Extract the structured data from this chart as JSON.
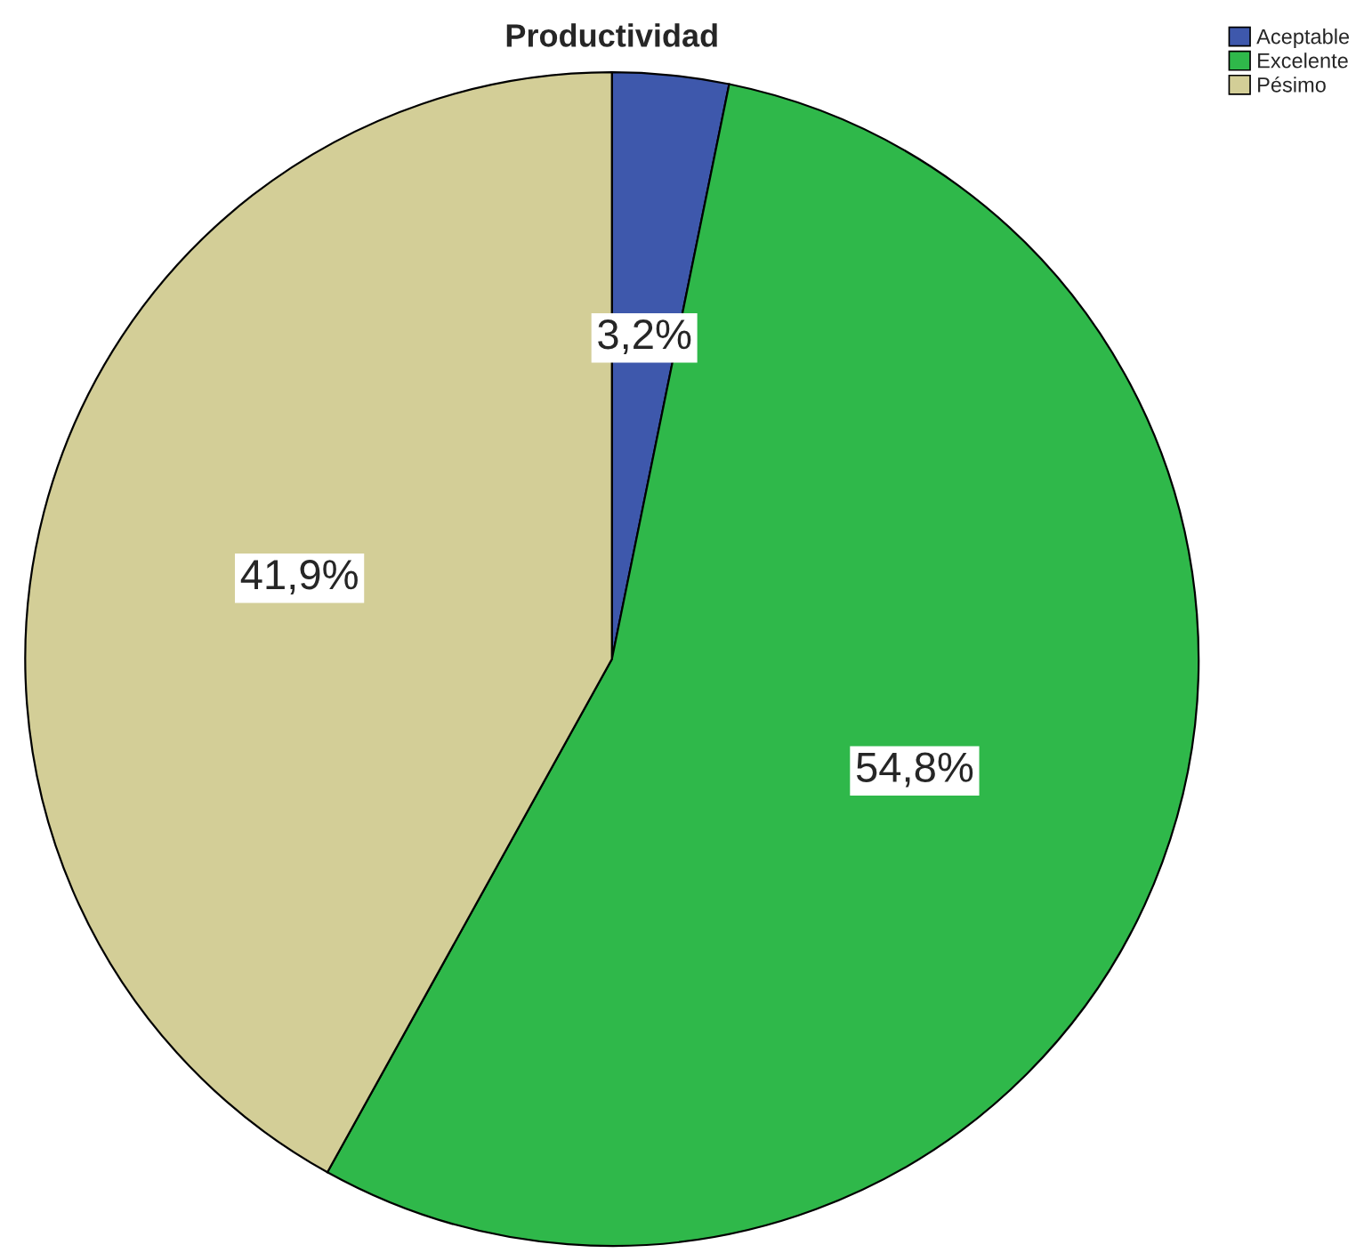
{
  "chart_data": {
    "type": "pie",
    "title": "Productividad",
    "categories": [
      "Aceptable",
      "Excelente",
      "Pésimo"
    ],
    "values": [
      3.2,
      54.8,
      41.9
    ],
    "value_labels": [
      "3,2%",
      "54,8%",
      "41,9%"
    ],
    "colors": [
      "#3e58ac",
      "#2fb84a",
      "#d3ce97"
    ],
    "legend": "top right"
  }
}
